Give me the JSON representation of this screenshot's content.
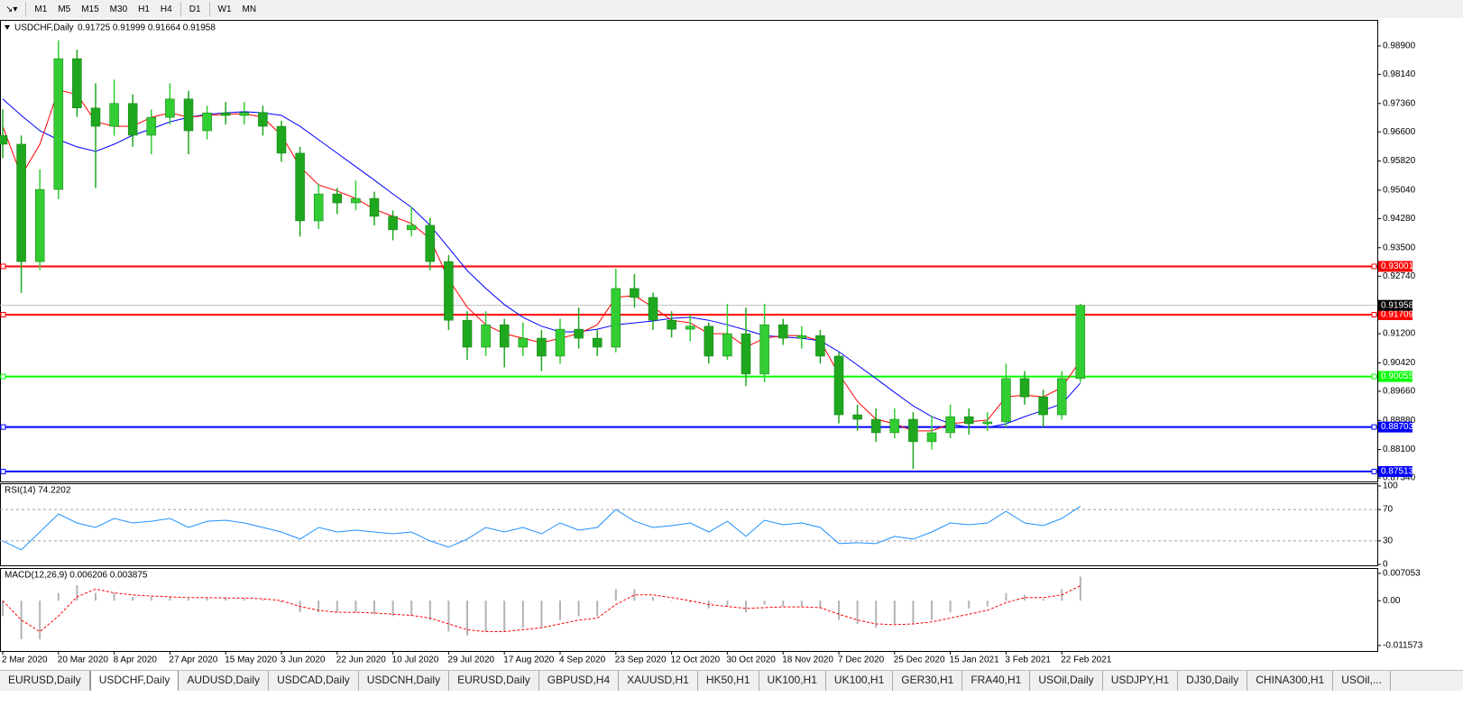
{
  "toolbar": {
    "timeframes": [
      "M1",
      "M5",
      "M15",
      "M30",
      "H1",
      "H4",
      "D1",
      "W1",
      "MN"
    ]
  },
  "chart_data": [
    {
      "type": "candlestick",
      "title": "USDCHF,Daily",
      "ohlc_text": "0.91725 0.91999 0.91664 0.91958",
      "categories": [
        "2 Mar 2020",
        null,
        null,
        "20 Mar 2020",
        null,
        null,
        "8 Apr 2020",
        null,
        null,
        "27 Apr 2020",
        null,
        null,
        "15 May 2020",
        null,
        null,
        "3 Jun 2020",
        null,
        null,
        "22 Jun 2020",
        null,
        null,
        "10 Jul 2020",
        null,
        null,
        "29 Jul 2020",
        null,
        null,
        "17 Aug 2020",
        null,
        null,
        "4 Sep 2020",
        null,
        null,
        "23 Sep 2020",
        null,
        null,
        "12 Oct 2020",
        null,
        null,
        "30 Oct 2020",
        null,
        null,
        "18 Nov 2020",
        null,
        null,
        "7 Dec 2020",
        null,
        null,
        "25 Dec 2020",
        null,
        null,
        "15 Jan 2021",
        null,
        null,
        "3 Feb 2021",
        null,
        null,
        "22 Feb 2021",
        null
      ],
      "open": [
        0.965,
        0.9627,
        0.9313,
        0.9506,
        0.9856,
        0.9724,
        0.9675,
        0.9736,
        0.9651,
        0.9699,
        0.9748,
        0.9663,
        0.9711,
        0.9704,
        0.9712,
        0.9675,
        0.9603,
        0.9422,
        0.9494,
        0.947,
        0.9482,
        0.9434,
        0.9398,
        0.941,
        0.9313,
        0.9156,
        0.9084,
        0.9144,
        0.9084,
        0.9108,
        0.906,
        0.9132,
        0.9108,
        0.9084,
        0.9241,
        0.9217,
        0.9156,
        0.9132,
        0.914,
        0.906,
        0.912,
        0.9012,
        0.9144,
        0.9108,
        0.9115,
        0.906,
        0.8903,
        0.8891,
        0.8855,
        0.8891,
        0.8831,
        0.8855,
        0.8898,
        0.8879,
        0.8884,
        0.9,
        0.8951,
        0.8903,
        0.9
      ],
      "high": [
        0.972,
        0.965,
        0.956,
        0.9905,
        0.988,
        0.979,
        0.98,
        0.976,
        0.972,
        0.979,
        0.977,
        0.973,
        0.974,
        0.974,
        0.973,
        0.969,
        0.962,
        0.952,
        0.951,
        0.953,
        0.95,
        0.945,
        0.946,
        0.943,
        0.933,
        0.918,
        0.918,
        0.916,
        0.915,
        0.913,
        0.916,
        0.919,
        0.913,
        0.9294,
        0.928,
        0.923,
        0.918,
        0.917,
        0.915,
        0.92,
        0.919,
        0.92,
        0.916,
        0.914,
        0.913,
        0.907,
        0.893,
        0.892,
        0.892,
        0.891,
        0.89,
        0.893,
        0.892,
        0.891,
        0.904,
        0.902,
        0.897,
        0.902,
        0.91999
      ],
      "low": [
        0.959,
        0.9229,
        0.929,
        0.948,
        0.97,
        0.951,
        0.965,
        0.962,
        0.96,
        0.968,
        0.96,
        0.964,
        0.968,
        0.968,
        0.965,
        0.958,
        0.938,
        0.94,
        0.944,
        0.945,
        0.941,
        0.937,
        0.938,
        0.929,
        0.913,
        0.905,
        0.906,
        0.903,
        0.906,
        0.902,
        0.904,
        0.908,
        0.906,
        0.907,
        0.919,
        0.913,
        0.911,
        0.91,
        0.904,
        0.905,
        0.898,
        0.899,
        0.909,
        0.908,
        0.904,
        0.888,
        0.886,
        0.883,
        0.884,
        0.8758,
        0.881,
        0.884,
        0.885,
        0.886,
        0.887,
        0.893,
        0.887,
        0.889,
        0.899
      ],
      "close": [
        0.9627,
        0.9313,
        0.9506,
        0.9856,
        0.9724,
        0.9675,
        0.9736,
        0.9651,
        0.9699,
        0.9748,
        0.9663,
        0.9711,
        0.9704,
        0.9712,
        0.9675,
        0.9603,
        0.9422,
        0.9494,
        0.947,
        0.9482,
        0.9434,
        0.9398,
        0.941,
        0.9313,
        0.9156,
        0.9084,
        0.9144,
        0.9084,
        0.9108,
        0.906,
        0.9132,
        0.9108,
        0.9084,
        0.9241,
        0.9217,
        0.9156,
        0.9132,
        0.914,
        0.906,
        0.912,
        0.9012,
        0.9144,
        0.9108,
        0.9115,
        0.906,
        0.8903,
        0.8891,
        0.8855,
        0.8891,
        0.8831,
        0.8855,
        0.8898,
        0.8879,
        0.8884,
        0.9,
        0.8951,
        0.8903,
        0.9,
        0.91958
      ],
      "up_color": "#32cd32",
      "down_color": "#1fa81f",
      "moving_averages": [
        {
          "color": "#0000ff",
          "values": [
            0.9748,
            0.9704,
            0.9663,
            0.9639,
            0.962,
            0.9608,
            0.9627,
            0.9651,
            0.9668,
            0.9687,
            0.9699,
            0.9707,
            0.9711,
            0.9714,
            0.9711,
            0.9704,
            0.9675,
            0.9639,
            0.9603,
            0.9567,
            0.9531,
            0.9494,
            0.9458,
            0.941,
            0.935,
            0.9289,
            0.9241,
            0.9198,
            0.9164,
            0.914,
            0.9125,
            0.9125,
            0.9132,
            0.9144,
            0.9149,
            0.9154,
            0.9161,
            0.9164,
            0.9156,
            0.9144,
            0.913,
            0.9115,
            0.9111,
            0.9108,
            0.9101,
            0.9072,
            0.9036,
            0.9,
            0.8963,
            0.8927,
            0.8898,
            0.8879,
            0.8869,
            0.8869,
            0.8879,
            0.8898,
            0.8915,
            0.8932,
            0.8988
          ]
        },
        {
          "color": "#ff0000",
          "values": [
            0.9675,
            0.9543,
            0.9627,
            0.9772,
            0.976,
            0.9687,
            0.9675,
            0.9675,
            0.9699,
            0.9711,
            0.9699,
            0.9704,
            0.9707,
            0.9709,
            0.9699,
            0.9651,
            0.9567,
            0.9518,
            0.9502,
            0.9482,
            0.9453,
            0.9434,
            0.9415,
            0.9374,
            0.9265,
            0.9191,
            0.9144,
            0.912,
            0.9108,
            0.9096,
            0.9108,
            0.912,
            0.9144,
            0.9217,
            0.9222,
            0.9191,
            0.9156,
            0.9149,
            0.912,
            0.912,
            0.9084,
            0.9108,
            0.9115,
            0.9115,
            0.9101,
            0.9012,
            0.8939,
            0.8891,
            0.8879,
            0.886,
            0.886,
            0.8879,
            0.8884,
            0.8889,
            0.8951,
            0.8956,
            0.8951,
            0.8976,
            0.9048
          ]
        }
      ],
      "levels": [
        {
          "value": 0.93001,
          "color": "#ff0000"
        },
        {
          "value": 0.91709,
          "color": "#ff0000"
        },
        {
          "value": 0.90055,
          "color": "#00ff00"
        },
        {
          "value": 0.88703,
          "color": "#0000ff"
        },
        {
          "value": 0.87513,
          "color": "#0000ff"
        }
      ],
      "last_price": 0.91958,
      "ylim": [
        0.8727,
        0.9955
      ],
      "yticks": [
        {
          "value": 0.989,
          "label": "0.98900"
        },
        {
          "value": 0.9814,
          "label": "0.98140"
        },
        {
          "value": 0.9736,
          "label": "0.97360"
        },
        {
          "value": 0.966,
          "label": "0.96600"
        },
        {
          "value": 0.9582,
          "label": "0.95820"
        },
        {
          "value": 0.9504,
          "label": "0.95040"
        },
        {
          "value": 0.9428,
          "label": "0.94280"
        },
        {
          "value": 0.935,
          "label": "0.93500"
        },
        {
          "value": 0.9274,
          "label": "0.92740"
        },
        {
          "value": 0.912,
          "label": "0.91200"
        },
        {
          "value": 0.9042,
          "label": "0.90420"
        },
        {
          "value": 0.8966,
          "label": "0.89660"
        },
        {
          "value": 0.8888,
          "label": "0.88880"
        },
        {
          "value": 0.881,
          "label": "0.88100"
        },
        {
          "value": 0.8734,
          "label": "0.87340"
        }
      ]
    },
    {
      "type": "line",
      "title": "RSI(14) 74.2202",
      "color": "#1e90ff",
      "values": [
        30,
        18.6,
        41.4,
        64.3,
        52.9,
        47.1,
        58.6,
        52.9,
        55.1,
        58.6,
        47.1,
        55.1,
        56.3,
        52.9,
        47.1,
        41.4,
        32.3,
        47.1,
        41.4,
        43.7,
        41.4,
        39.1,
        41.4,
        30,
        22,
        32.3,
        47.1,
        41.4,
        47.1,
        39.1,
        52.9,
        43.7,
        47.1,
        70,
        55.1,
        47.1,
        49.4,
        52.9,
        41.4,
        55.1,
        35.7,
        56.3,
        50.6,
        52.9,
        47.1,
        26.6,
        27.7,
        26.6,
        35.7,
        32.3,
        41.4,
        52.9,
        50.6,
        52.9,
        67.7,
        52.9,
        49.4,
        58.6,
        74.2202
      ],
      "levels": [
        30,
        70
      ],
      "ylim": [
        0,
        100
      ],
      "yticks": [
        0,
        30,
        70,
        100
      ]
    },
    {
      "type": "macd",
      "title": "MACD(12,26,9) 0.006206 0.003875",
      "hist_color": "#b4b4b4",
      "signal_color": "#ff0000",
      "histogram": [
        -0.004,
        -0.01,
        -0.01,
        0.002,
        0.004,
        0.002,
        0.002,
        0.001,
        0.001,
        0.001,
        0.0005,
        0.0008,
        0.0008,
        0.0006,
        0.0003,
        -0.0005,
        -0.003,
        -0.003,
        -0.003,
        -0.003,
        -0.0035,
        -0.004,
        -0.004,
        -0.005,
        -0.008,
        -0.009,
        -0.008,
        -0.008,
        -0.007,
        -0.007,
        -0.005,
        -0.004,
        -0.004,
        0.003,
        0.003,
        0.001,
        0.0,
        -0.0005,
        -0.002,
        -0.0015,
        -0.003,
        -0.001,
        -0.0015,
        -0.0015,
        -0.002,
        -0.005,
        -0.006,
        -0.007,
        -0.006,
        -0.006,
        -0.005,
        -0.003,
        -0.002,
        -0.0015,
        0.002,
        0.0015,
        0.0005,
        0.003,
        0.006206
      ],
      "signal": [
        0.0,
        -0.005,
        -0.008,
        -0.004,
        0.001,
        0.003,
        0.002,
        0.0015,
        0.0012,
        0.001,
        0.0008,
        0.0008,
        0.0007,
        0.0007,
        0.0005,
        0.0,
        -0.0015,
        -0.0025,
        -0.003,
        -0.003,
        -0.0032,
        -0.0035,
        -0.0038,
        -0.0045,
        -0.006,
        -0.0075,
        -0.008,
        -0.008,
        -0.0075,
        -0.007,
        -0.006,
        -0.005,
        -0.0045,
        -0.001,
        0.0015,
        0.0015,
        0.0008,
        0.0,
        -0.001,
        -0.0015,
        -0.002,
        -0.0018,
        -0.0016,
        -0.0016,
        -0.0018,
        -0.0035,
        -0.005,
        -0.006,
        -0.0062,
        -0.006,
        -0.0055,
        -0.0045,
        -0.0035,
        -0.0025,
        -0.0005,
        0.0008,
        0.0008,
        0.0015,
        0.003875
      ],
      "ylim": [
        -0.013,
        0.0082
      ],
      "yticks": [
        0.007053,
        {
          "value": 0,
          "label": "0.00"
        },
        -0.011573
      ]
    }
  ],
  "tabs": [
    "EURUSD,Daily",
    "USDCHF,Daily",
    "AUDUSD,Daily",
    "USDCAD,Daily",
    "USDCNH,Daily",
    "EURUSD,Daily",
    "GBPUSD,H4",
    "XAUUSD,H1",
    "HK50,H1",
    "UK100,H1",
    "UK100,H1",
    "GER30,H1",
    "FRA40,H1",
    "USOil,Daily",
    "USDJPY,H1",
    "DJ30,Daily",
    "CHINA300,H1",
    "USOil,..."
  ],
  "active_tab": 1
}
